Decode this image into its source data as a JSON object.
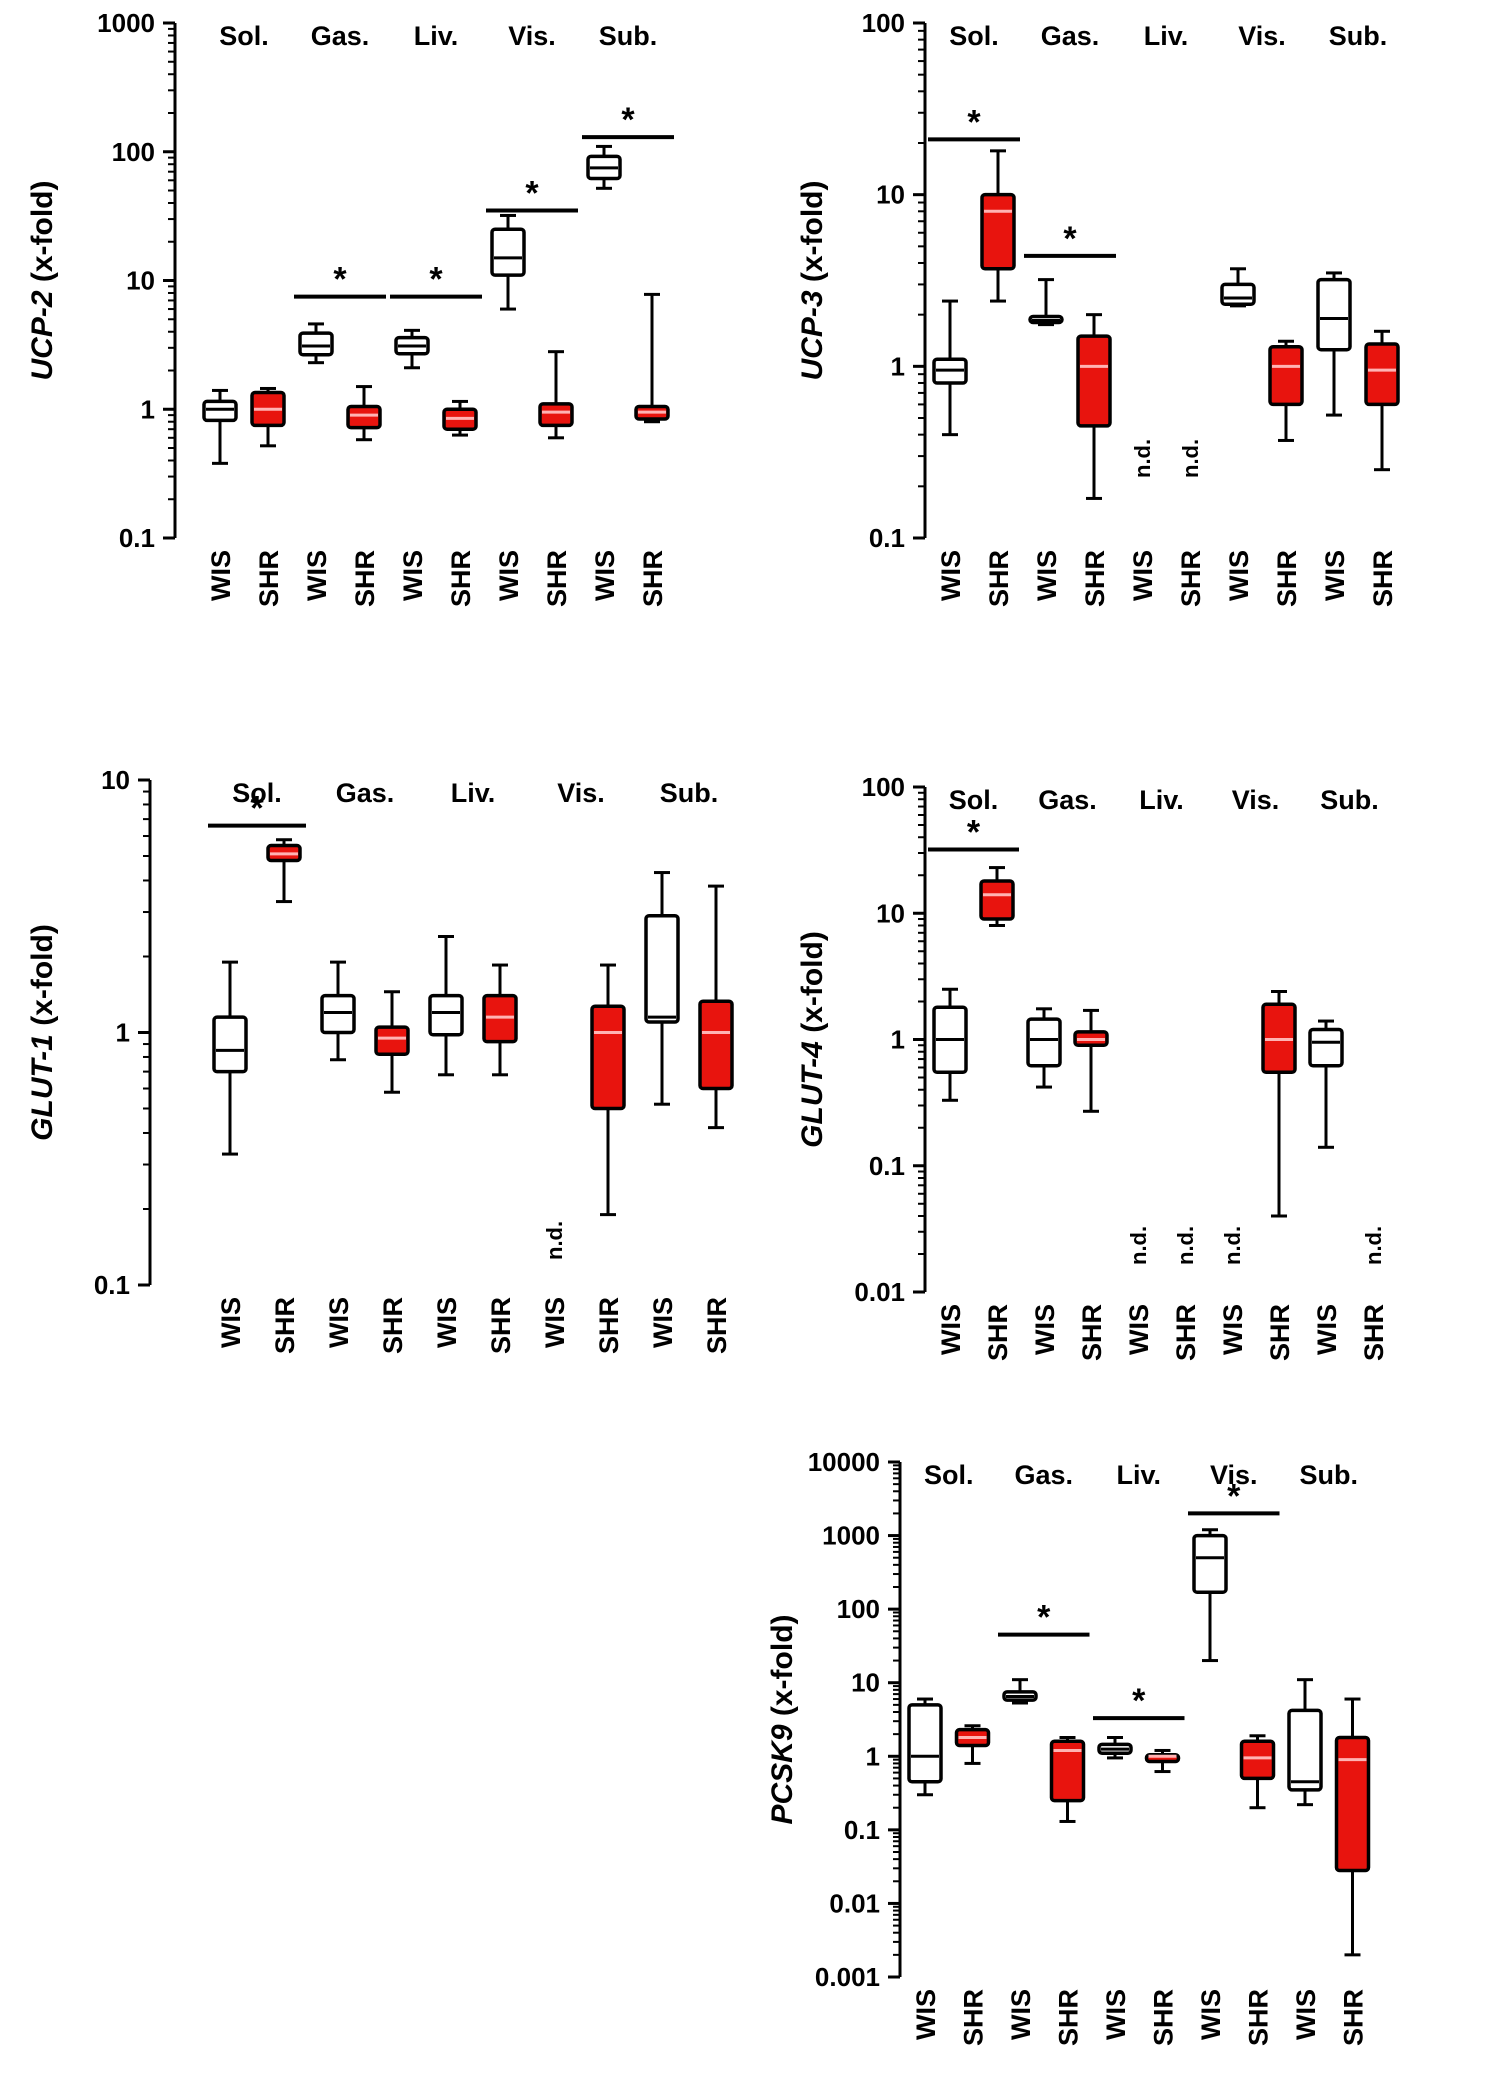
{
  "colors": {
    "wis": "#ffffff",
    "shr": "#e8140e",
    "stroke": "#000000",
    "median_on_red": "#ffb3b3"
  },
  "chart_data": [
    {
      "id": "ucp2",
      "type": "boxplot",
      "yscale": "log",
      "ylabel_gene": "UCP-2",
      "ylabel_unit": " (x-fold)",
      "ylim": [
        0.1,
        1000
      ],
      "yticks": [
        0.1,
        1,
        10,
        100,
        1000
      ],
      "ytick_labels": [
        "0.1",
        "1",
        "10",
        "100",
        "1000"
      ],
      "tissues": [
        "Sol.",
        "Gas.",
        "Liv.",
        "Vis.",
        "Sub."
      ],
      "groups": [
        "WIS",
        "SHR",
        "WIS",
        "SHR",
        "WIS",
        "SHR",
        "WIS",
        "SHR",
        "WIS",
        "SHR"
      ],
      "boxes": [
        {
          "min": 0.38,
          "q1": 0.82,
          "median": 1.0,
          "q3": 1.15,
          "max": 1.4
        },
        {
          "min": 0.52,
          "q1": 0.75,
          "median": 1.0,
          "q3": 1.35,
          "max": 1.45
        },
        {
          "min": 2.3,
          "q1": 2.65,
          "median": 3.1,
          "q3": 3.9,
          "max": 4.6
        },
        {
          "min": 0.58,
          "q1": 0.72,
          "median": 0.9,
          "q3": 1.05,
          "max": 1.5
        },
        {
          "min": 2.1,
          "q1": 2.7,
          "median": 3.1,
          "q3": 3.6,
          "max": 4.1
        },
        {
          "min": 0.63,
          "q1": 0.7,
          "median": 0.85,
          "q3": 1.0,
          "max": 1.15
        },
        {
          "min": 6.0,
          "q1": 11.0,
          "median": 15.0,
          "q3": 25.0,
          "max": 32.0
        },
        {
          "min": 0.6,
          "q1": 0.75,
          "median": 0.95,
          "q3": 1.1,
          "max": 2.8
        },
        {
          "min": 52.0,
          "q1": 62.0,
          "median": 75.0,
          "q3": 92.0,
          "max": 110.0
        },
        {
          "min": 0.8,
          "q1": 0.84,
          "median": 0.95,
          "q3": 1.05,
          "max": 7.8
        }
      ],
      "not_detected": [],
      "significance": [
        {
          "from": 2,
          "to": 3,
          "y": 7.5,
          "label": "*"
        },
        {
          "from": 4,
          "to": 5,
          "y": 7.5,
          "label": "*"
        },
        {
          "from": 6,
          "to": 7,
          "y": 35.0,
          "label": "*"
        },
        {
          "from": 8,
          "to": 9,
          "y": 130.0,
          "label": "*"
        }
      ],
      "nd_label": "n.d."
    },
    {
      "id": "ucp3",
      "type": "boxplot",
      "yscale": "log",
      "ylabel_gene": "UCP-3",
      "ylabel_unit": " (x-fold)",
      "ylim": [
        0.1,
        100
      ],
      "yticks": [
        0.1,
        1,
        10,
        100
      ],
      "ytick_labels": [
        "0.1",
        "1",
        "10",
        "100"
      ],
      "tissues": [
        "Sol.",
        "Gas.",
        "Liv.",
        "Vis.",
        "Sub."
      ],
      "groups": [
        "WIS",
        "SHR",
        "WIS",
        "SHR",
        "WIS",
        "SHR",
        "WIS",
        "SHR",
        "WIS",
        "SHR"
      ],
      "boxes": [
        {
          "min": 0.4,
          "q1": 0.8,
          "median": 0.95,
          "q3": 1.1,
          "max": 2.4
        },
        {
          "min": 2.4,
          "q1": 3.7,
          "median": 8.0,
          "q3": 10.0,
          "max": 18.0
        },
        {
          "min": 1.75,
          "q1": 1.8,
          "median": 1.85,
          "q3": 1.95,
          "max": 3.2
        },
        {
          "min": 0.17,
          "q1": 0.45,
          "median": 1.0,
          "q3": 1.5,
          "max": 2.0
        },
        null,
        null,
        {
          "min": 2.25,
          "q1": 2.3,
          "median": 2.5,
          "q3": 3.0,
          "max": 3.7
        },
        {
          "min": 0.37,
          "q1": 0.6,
          "median": 1.0,
          "q3": 1.3,
          "max": 1.4
        },
        {
          "min": 0.52,
          "q1": 1.25,
          "median": 1.9,
          "q3": 3.2,
          "max": 3.5
        },
        {
          "min": 0.25,
          "q1": 0.6,
          "median": 0.95,
          "q3": 1.35,
          "max": 1.6
        }
      ],
      "not_detected": [
        4,
        5
      ],
      "significance": [
        {
          "from": 0,
          "to": 1,
          "y": 21.0,
          "label": "*"
        },
        {
          "from": 2,
          "to": 3,
          "y": 4.4,
          "label": "*"
        }
      ],
      "nd_label": "n.d."
    },
    {
      "id": "glut1",
      "type": "boxplot",
      "yscale": "log",
      "ylabel_gene": "GLUT-1",
      "ylabel_unit": " (x-fold)",
      "ylim": [
        0.1,
        10
      ],
      "yticks": [
        0.1,
        1,
        10
      ],
      "ytick_labels": [
        "0.1",
        "1",
        "10"
      ],
      "tissues": [
        "Sol.",
        "Gas.",
        "Liv.",
        "Vis.",
        "Sub."
      ],
      "groups": [
        "WIS",
        "SHR",
        "WIS",
        "SHR",
        "WIS",
        "SHR",
        "WIS",
        "SHR",
        "WIS",
        "SHR"
      ],
      "boxes": [
        {
          "min": 0.33,
          "q1": 0.7,
          "median": 0.85,
          "q3": 1.15,
          "max": 1.9
        },
        {
          "min": 3.3,
          "q1": 4.8,
          "median": 5.1,
          "q3": 5.5,
          "max": 5.8
        },
        {
          "min": 0.78,
          "q1": 1.0,
          "median": 1.2,
          "q3": 1.4,
          "max": 1.9
        },
        {
          "min": 0.58,
          "q1": 0.82,
          "median": 0.95,
          "q3": 1.05,
          "max": 1.45
        },
        {
          "min": 0.68,
          "q1": 0.98,
          "median": 1.2,
          "q3": 1.4,
          "max": 2.4
        },
        {
          "min": 0.68,
          "q1": 0.92,
          "median": 1.15,
          "q3": 1.4,
          "max": 1.85
        },
        null,
        {
          "min": 0.19,
          "q1": 0.5,
          "median": 1.0,
          "q3": 1.27,
          "max": 1.85
        },
        {
          "min": 0.52,
          "q1": 1.1,
          "median": 1.15,
          "q3": 2.9,
          "max": 4.3
        },
        {
          "min": 0.42,
          "q1": 0.6,
          "median": 1.0,
          "q3": 1.33,
          "max": 3.8
        }
      ],
      "not_detected": [
        6
      ],
      "significance": [
        {
          "from": 0,
          "to": 1,
          "y": 6.6,
          "label": "*"
        }
      ],
      "nd_label": "n.d."
    },
    {
      "id": "glut4",
      "type": "boxplot",
      "yscale": "log",
      "ylabel_gene": "GLUT-4",
      "ylabel_unit": " (x-fold)",
      "ylim": [
        0.01,
        100
      ],
      "yticks": [
        0.01,
        0.1,
        1,
        10,
        100
      ],
      "ytick_labels": [
        "0.01",
        "0.1",
        "1",
        "10",
        "100"
      ],
      "tissues": [
        "Sol.",
        "Gas.",
        "Liv.",
        "Vis.",
        "Sub."
      ],
      "groups": [
        "WIS",
        "SHR",
        "WIS",
        "SHR",
        "WIS",
        "SHR",
        "WIS",
        "SHR",
        "WIS",
        "SHR"
      ],
      "boxes": [
        {
          "min": 0.33,
          "q1": 0.55,
          "median": 1.0,
          "q3": 1.8,
          "max": 2.5
        },
        {
          "min": 8.0,
          "q1": 9.0,
          "median": 14.0,
          "q3": 18.0,
          "max": 23.0
        },
        {
          "min": 0.42,
          "q1": 0.62,
          "median": 1.0,
          "q3": 1.45,
          "max": 1.75
        },
        {
          "min": 0.27,
          "q1": 0.9,
          "median": 1.0,
          "q3": 1.15,
          "max": 1.7
        },
        null,
        null,
        null,
        {
          "min": 0.04,
          "q1": 0.55,
          "median": 1.0,
          "q3": 1.9,
          "max": 2.4
        },
        {
          "min": 0.14,
          "q1": 0.62,
          "median": 0.95,
          "q3": 1.2,
          "max": 1.4
        },
        null
      ],
      "not_detected": [
        4,
        5,
        6,
        9
      ],
      "significance": [
        {
          "from": 0,
          "to": 1,
          "y": 32.0,
          "label": "*"
        }
      ],
      "nd_label": "n.d."
    },
    {
      "id": "pcsk9",
      "type": "boxplot",
      "yscale": "log",
      "ylabel_gene": "PCSK9",
      "ylabel_unit": " (x-fold)",
      "ylim": [
        0.001,
        10000
      ],
      "yticks": [
        0.001,
        0.01,
        0.1,
        1,
        10,
        100,
        1000,
        10000
      ],
      "ytick_labels": [
        "0.001",
        "0.01",
        "0.1",
        "1",
        "10",
        "100",
        "1000",
        "10000"
      ],
      "tissues": [
        "Sol.",
        "Gas.",
        "Liv.",
        "Vis.",
        "Sub."
      ],
      "groups": [
        "WIS",
        "SHR",
        "WIS",
        "SHR",
        "WIS",
        "SHR",
        "WIS",
        "SHR",
        "WIS",
        "SHR"
      ],
      "boxes": [
        {
          "min": 0.3,
          "q1": 0.45,
          "median": 1.0,
          "q3": 5.0,
          "max": 6.0
        },
        {
          "min": 0.8,
          "q1": 1.4,
          "median": 1.8,
          "q3": 2.3,
          "max": 2.6
        },
        {
          "min": 5.3,
          "q1": 5.8,
          "median": 6.5,
          "q3": 7.5,
          "max": 11.0
        },
        {
          "min": 0.13,
          "q1": 0.25,
          "median": 1.2,
          "q3": 1.6,
          "max": 1.8
        },
        {
          "min": 0.95,
          "q1": 1.1,
          "median": 1.25,
          "q3": 1.45,
          "max": 1.8
        },
        {
          "min": 0.62,
          "q1": 0.85,
          "median": 1.0,
          "q3": 1.05,
          "max": 1.2
        },
        {
          "min": 20.0,
          "q1": 170.0,
          "median": 500.0,
          "q3": 1000.0,
          "max": 1200.0
        },
        {
          "min": 0.2,
          "q1": 0.5,
          "median": 0.95,
          "q3": 1.6,
          "max": 1.9
        },
        {
          "min": 0.22,
          "q1": 0.35,
          "median": 0.45,
          "q3": 4.2,
          "max": 11.0
        },
        {
          "min": 0.002,
          "q1": 0.028,
          "median": 0.9,
          "q3": 1.8,
          "max": 6.0
        }
      ],
      "not_detected": [],
      "significance": [
        {
          "from": 2,
          "to": 3,
          "y": 45.0,
          "label": "*"
        },
        {
          "from": 4,
          "to": 5,
          "y": 3.3,
          "label": "*"
        },
        {
          "from": 6,
          "to": 7,
          "y": 2000.0,
          "label": "*"
        }
      ],
      "nd_label": "n.d."
    }
  ]
}
